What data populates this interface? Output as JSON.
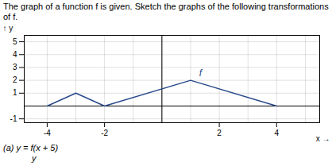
{
  "chart_data": {
    "type": "line",
    "title": "The graph of a function f is given. Sketch the graphs of the following transformations of f.",
    "subtitle": "(a)  y = f(x + 5)",
    "x": [
      -4,
      -3,
      -2,
      1,
      4
    ],
    "values": [
      0,
      1,
      0,
      2,
      0
    ],
    "color": "#2a4a8c",
    "xlim": [
      -4.8,
      5.5
    ],
    "ylim": [
      -1.3,
      5.5
    ],
    "xticks": [
      -4,
      -2,
      2,
      4
    ],
    "yticks": [
      -1,
      1,
      2,
      3,
      4,
      5
    ],
    "xlabel": "x",
    "ylabel": "y",
    "grid": true,
    "annotations": [
      {
        "text": "f",
        "x": 1.3,
        "y": 2.3
      },
      {
        "text": "y"
      }
    ]
  }
}
